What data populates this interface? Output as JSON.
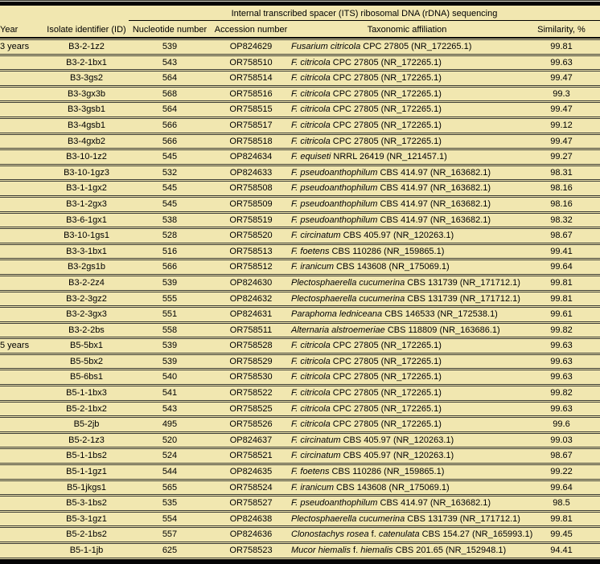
{
  "table": {
    "spanning_header": "Internal transcribed spacer (ITS) ribosomal DNA (rDNA) sequencing",
    "columns": {
      "year": "Year",
      "id": "Isolate identifier (ID)",
      "nucleotide": "Nucleotide number",
      "accession": "Accession number",
      "taxonomic": "Taxonomic affiliation",
      "similarity": "Similarity, %"
    },
    "colors": {
      "background": "#f1e7b0",
      "rule_heavy": "#050505",
      "rule_light": "#3c3c34"
    },
    "rows": [
      {
        "year": "3 years",
        "id": "B3-2-1z2",
        "nucleotide": "539",
        "accession": "OP824629",
        "taxon": [
          {
            "t": "Fusarium citricola",
            "i": true
          },
          {
            "t": " CPC 27805 (NR_172265.1)",
            "i": false
          }
        ],
        "similarity": "99.81"
      },
      {
        "year": "",
        "id": "B3-2-1bx1",
        "nucleotide": "543",
        "accession": "OR758510",
        "taxon": [
          {
            "t": "F. citricola",
            "i": true
          },
          {
            "t": " CPC 27805 (NR_172265.1)",
            "i": false
          }
        ],
        "similarity": "99.63"
      },
      {
        "year": "",
        "id": "B3-3gs2",
        "nucleotide": "564",
        "accession": "OR758514",
        "taxon": [
          {
            "t": "F. citricola",
            "i": true
          },
          {
            "t": " CPC 27805 (NR_172265.1)",
            "i": false
          }
        ],
        "similarity": "99.47"
      },
      {
        "year": "",
        "id": "B3-3gx3b",
        "nucleotide": "568",
        "accession": "OR758516",
        "taxon": [
          {
            "t": "F. citricola",
            "i": true
          },
          {
            "t": " CPC 27805 (NR_172265.1)",
            "i": false
          }
        ],
        "similarity": "99.3"
      },
      {
        "year": "",
        "id": "B3-3gsb1",
        "nucleotide": "564",
        "accession": "OR758515",
        "taxon": [
          {
            "t": "F. citricola",
            "i": true
          },
          {
            "t": " CPC 27805 (NR_172265.1)",
            "i": false
          }
        ],
        "similarity": "99.47"
      },
      {
        "year": "",
        "id": "B3-4gsb1",
        "nucleotide": "566",
        "accession": "OR758517",
        "taxon": [
          {
            "t": "F. citricola",
            "i": true
          },
          {
            "t": " CPC 27805 (NR_172265.1)",
            "i": false
          }
        ],
        "similarity": "99.12"
      },
      {
        "year": "",
        "id": "B3-4gxb2",
        "nucleotide": "566",
        "accession": "OR758518",
        "taxon": [
          {
            "t": "F. citricola",
            "i": true
          },
          {
            "t": " CPC 27805 (NR_172265.1)",
            "i": false
          }
        ],
        "similarity": "99.47"
      },
      {
        "year": "",
        "id": "B3-10-1z2",
        "nucleotide": "545",
        "accession": "OP824634",
        "taxon": [
          {
            "t": "F. equiseti",
            "i": true
          },
          {
            "t": " NRRL 26419 (NR_121457.1)",
            "i": false
          }
        ],
        "similarity": "99.27"
      },
      {
        "year": "",
        "id": "B3-10-1gz3",
        "nucleotide": "532",
        "accession": "OP824633",
        "taxon": [
          {
            "t": "F. pseudoanthophilum",
            "i": true
          },
          {
            "t": " CBS 414.97 (NR_163682.1)",
            "i": false
          }
        ],
        "similarity": "98.31"
      },
      {
        "year": "",
        "id": "B3-1-1gx2",
        "nucleotide": "545",
        "accession": "OR758508",
        "taxon": [
          {
            "t": "F. pseudoanthophilum",
            "i": true
          },
          {
            "t": " CBS 414.97 (NR_163682.1)",
            "i": false
          }
        ],
        "similarity": "98.16"
      },
      {
        "year": "",
        "id": "B3-1-2gx3",
        "nucleotide": "545",
        "accession": "OR758509",
        "taxon": [
          {
            "t": "F. pseudoanthophilum",
            "i": true
          },
          {
            "t": " CBS 414.97 (NR_163682.1)",
            "i": false
          }
        ],
        "similarity": "98.16"
      },
      {
        "year": "",
        "id": "B3-6-1gx1",
        "nucleotide": "538",
        "accession": "OR758519",
        "taxon": [
          {
            "t": "F. pseudoanthophilum",
            "i": true
          },
          {
            "t": " CBS 414.97 (NR_163682.1)",
            "i": false
          }
        ],
        "similarity": "98.32"
      },
      {
        "year": "",
        "id": "B3-10-1gs1",
        "nucleotide": "528",
        "accession": "OR758520",
        "taxon": [
          {
            "t": "F. circinatum",
            "i": true
          },
          {
            "t": " CBS 405.97 (NR_120263.1)",
            "i": false
          }
        ],
        "similarity": "98.67"
      },
      {
        "year": "",
        "id": "B3-3-1bx1",
        "nucleotide": "516",
        "accession": "OR758513",
        "taxon": [
          {
            "t": "F. foetens",
            "i": true
          },
          {
            "t": " CBS 110286 (NR_159865.1)",
            "i": false
          }
        ],
        "similarity": "99.41"
      },
      {
        "year": "",
        "id": "B3-2gs1b",
        "nucleotide": "566",
        "accession": "OR758512",
        "taxon": [
          {
            "t": "F. iranicum",
            "i": true
          },
          {
            "t": " CBS 143608 (NR_175069.1)",
            "i": false
          }
        ],
        "similarity": "99.64"
      },
      {
        "year": "",
        "id": "B3-2-2z4",
        "nucleotide": "539",
        "accession": "OP824630",
        "taxon": [
          {
            "t": "Plectosphaerella cucumerina",
            "i": true
          },
          {
            "t": " CBS 131739 (NR_171712.1)",
            "i": false
          }
        ],
        "similarity": "99.81"
      },
      {
        "year": "",
        "id": "B3-2-3gz2",
        "nucleotide": "555",
        "accession": "OP824632",
        "taxon": [
          {
            "t": "Plectosphaerella cucumerina",
            "i": true
          },
          {
            "t": " CBS 131739 (NR_171712.1)",
            "i": false
          }
        ],
        "similarity": "99.81"
      },
      {
        "year": "",
        "id": "B3-2-3gx3",
        "nucleotide": "551",
        "accession": "OP824631",
        "taxon": [
          {
            "t": "Paraphoma ledniceana",
            "i": true
          },
          {
            "t": " CBS 146533 (NR_172538.1)",
            "i": false
          }
        ],
        "similarity": "99.61"
      },
      {
        "year": "",
        "id": "B3-2-2bs",
        "nucleotide": "558",
        "accession": "OR758511",
        "taxon": [
          {
            "t": "Alternaria alstroemeriae",
            "i": true
          },
          {
            "t": " CBS 118809 (NR_163686.1)",
            "i": false
          }
        ],
        "similarity": "99.82"
      },
      {
        "year": "5 years",
        "id": "B5-5bx1",
        "nucleotide": "539",
        "accession": "OR758528",
        "taxon": [
          {
            "t": "F. citricola",
            "i": true
          },
          {
            "t": " CPC 27805 (NR_172265.1)",
            "i": false
          }
        ],
        "similarity": "99.63"
      },
      {
        "year": "",
        "id": "B5-5bx2",
        "nucleotide": "539",
        "accession": "OR758529",
        "taxon": [
          {
            "t": "F. citricola",
            "i": true
          },
          {
            "t": " CPC 27805 (NR_172265.1)",
            "i": false
          }
        ],
        "similarity": "99.63"
      },
      {
        "year": "",
        "id": "B5-6bs1",
        "nucleotide": "540",
        "accession": "OR758530",
        "taxon": [
          {
            "t": "F. citricola",
            "i": true
          },
          {
            "t": " CPC 27805 (NR_172265.1)",
            "i": false
          }
        ],
        "similarity": "99.63"
      },
      {
        "year": "",
        "id": "B5-1-1bx3",
        "nucleotide": "541",
        "accession": "OR758522",
        "taxon": [
          {
            "t": "F. citricola",
            "i": true
          },
          {
            "t": " CPC 27805 (NR_172265.1)",
            "i": false
          }
        ],
        "similarity": "99.82"
      },
      {
        "year": "",
        "id": "B5-2-1bx2",
        "nucleotide": "543",
        "accession": "OR758525",
        "taxon": [
          {
            "t": "F. citricola",
            "i": true
          },
          {
            "t": " CPC 27805 (NR_172265.1)",
            "i": false
          }
        ],
        "similarity": "99.63"
      },
      {
        "year": "",
        "id": "B5-2jb",
        "nucleotide": "495",
        "accession": "OR758526",
        "taxon": [
          {
            "t": "F. citricola",
            "i": true
          },
          {
            "t": " CPC 27805 (NR_172265.1)",
            "i": false
          }
        ],
        "similarity": "99.6"
      },
      {
        "year": "",
        "id": "B5-2-1z3",
        "nucleotide": "520",
        "accession": "OP824637",
        "taxon": [
          {
            "t": "F. circinatum",
            "i": true
          },
          {
            "t": " CBS 405.97 (NR_120263.1)",
            "i": false
          }
        ],
        "similarity": "99.03"
      },
      {
        "year": "",
        "id": "B5-1-1bs2",
        "nucleotide": "524",
        "accession": "OR758521",
        "taxon": [
          {
            "t": "F. circinatum",
            "i": true
          },
          {
            "t": " CBS 405.97 (NR_120263.1)",
            "i": false
          }
        ],
        "similarity": "98.67"
      },
      {
        "year": "",
        "id": "B5-1-1gz1",
        "nucleotide": "544",
        "accession": "OP824635",
        "taxon": [
          {
            "t": "F. foetens",
            "i": true
          },
          {
            "t": " CBS 110286 (NR_159865.1)",
            "i": false
          }
        ],
        "similarity": "99.22"
      },
      {
        "year": "",
        "id": "B5-1jkgs1",
        "nucleotide": "565",
        "accession": "OR758524",
        "taxon": [
          {
            "t": "F. iranicum",
            "i": true
          },
          {
            "t": " CBS 143608 (NR_175069.1)",
            "i": false
          }
        ],
        "similarity": "99.64"
      },
      {
        "year": "",
        "id": "B5-3-1bs2",
        "nucleotide": "535",
        "accession": "OR758527",
        "taxon": [
          {
            "t": "F. pseudoanthophilum",
            "i": true
          },
          {
            "t": " CBS 414.97 (NR_163682.1)",
            "i": false
          }
        ],
        "similarity": "98.5"
      },
      {
        "year": "",
        "id": "B5-3-1gz1",
        "nucleotide": "554",
        "accession": "OP824638",
        "taxon": [
          {
            "t": "Plectosphaerella cucumerina",
            "i": true
          },
          {
            "t": " CBS 131739 (NR_171712.1)",
            "i": false
          }
        ],
        "similarity": "99.81"
      },
      {
        "year": "",
        "id": "B5-2-1bs2",
        "nucleotide": "557",
        "accession": "OP824636",
        "taxon": [
          {
            "t": "Clonostachys rosea",
            "i": true
          },
          {
            "t": " f. ",
            "i": false
          },
          {
            "t": "catenulata",
            "i": true
          },
          {
            "t": " CBS 154.27 (NR_165993.1)",
            "i": false
          }
        ],
        "similarity": "99.45"
      },
      {
        "year": "",
        "id": "B5-1-1jb",
        "nucleotide": "625",
        "accession": "OR758523",
        "taxon": [
          {
            "t": "Mucor hiemalis",
            "i": true
          },
          {
            "t": " f. ",
            "i": false
          },
          {
            "t": "hiemalis",
            "i": true
          },
          {
            "t": " CBS 201.65 (NR_152948.1)",
            "i": false
          }
        ],
        "similarity": "94.41"
      }
    ]
  }
}
